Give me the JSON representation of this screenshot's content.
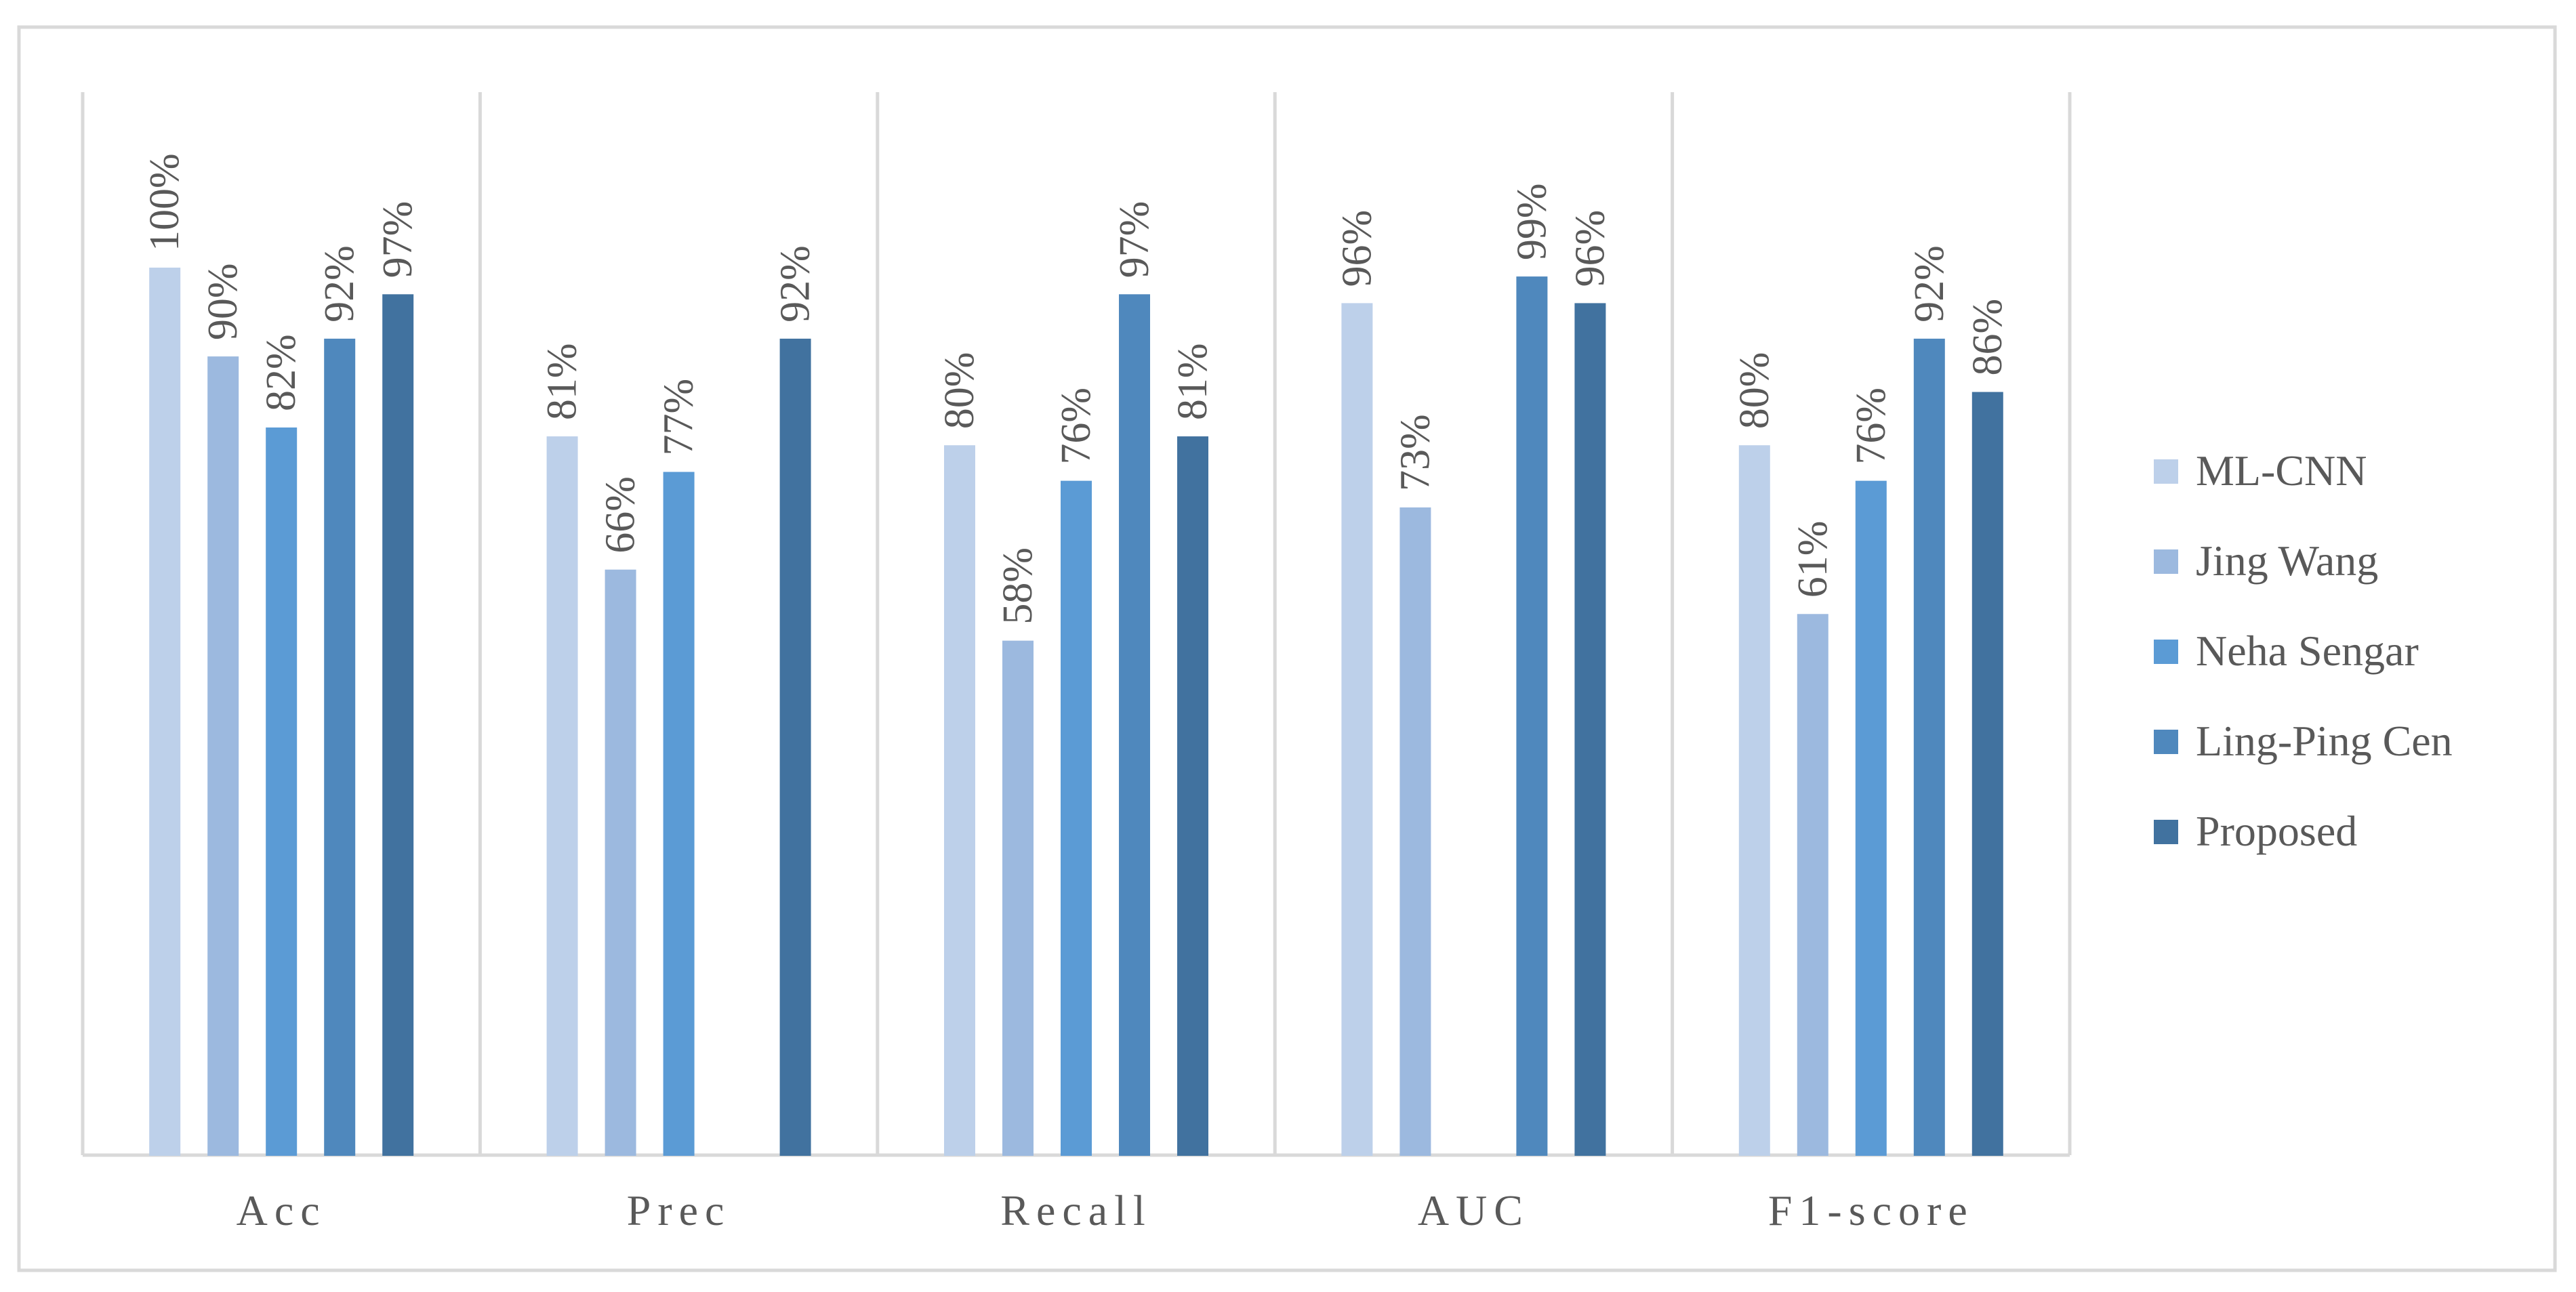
{
  "chart_data": {
    "type": "bar",
    "categories": [
      "Acc",
      "Prec",
      "Recall",
      "AUC",
      "F1-score"
    ],
    "series": [
      {
        "name": "ML-CNN",
        "color": "#bdd0ea",
        "values": [
          100,
          81,
          80,
          96,
          80
        ]
      },
      {
        "name": "Jing Wang",
        "color": "#9cb9df",
        "values": [
          90,
          66,
          58,
          73,
          61
        ]
      },
      {
        "name": "Neha Sengar",
        "color": "#5b9bd5",
        "values": [
          82,
          77,
          76,
          null,
          76
        ]
      },
      {
        "name": "Ling-Ping Cen",
        "color": "#4f88bd",
        "values": [
          92,
          null,
          97,
          99,
          92
        ]
      },
      {
        "name": "Proposed",
        "color": "#41729f",
        "values": [
          97,
          92,
          81,
          96,
          86
        ]
      }
    ],
    "data_labels": [
      [
        "100%",
        "81%",
        "80%",
        "96%",
        "80%"
      ],
      [
        "90%",
        "66%",
        "58%",
        "73%",
        "61%"
      ],
      [
        "82%",
        "77%",
        "76%",
        "",
        "76%"
      ],
      [
        "92%",
        "",
        "97%",
        "99%",
        "92%"
      ],
      [
        "97%",
        "92%",
        "81%",
        "96%",
        "86%"
      ]
    ],
    "ylim": [
      0,
      100
    ],
    "value_unit": "%",
    "title": "",
    "xlabel": "",
    "ylabel": "",
    "grid": "vertical category separators",
    "legend_position": "right"
  }
}
